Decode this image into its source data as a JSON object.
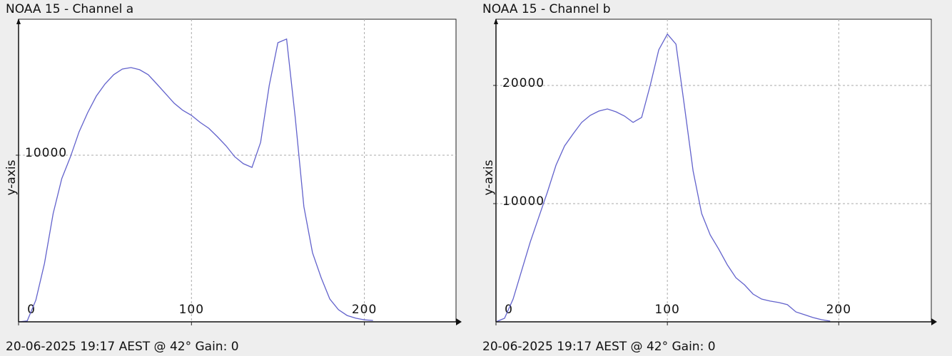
{
  "chart_data": [
    {
      "type": "line",
      "title": "NOAA 15 - Channel a",
      "ylabel": "y-axis",
      "footer": "20-06-2025 19:17 AEST @ 42° Gain: 0",
      "x": [
        0,
        5,
        10,
        15,
        20,
        25,
        30,
        35,
        40,
        45,
        50,
        55,
        60,
        65,
        70,
        75,
        80,
        85,
        90,
        95,
        100,
        105,
        110,
        115,
        120,
        125,
        130,
        135,
        140,
        145,
        150,
        155,
        160,
        165,
        170,
        175,
        180,
        185,
        190,
        195,
        200,
        205
      ],
      "series": [
        {
          "name": "Channel a",
          "color": "#6262cc",
          "values": [
            0,
            50,
            1300,
            3500,
            6500,
            8600,
            9900,
            11400,
            12560,
            13550,
            14270,
            14830,
            15170,
            15260,
            15130,
            14830,
            14270,
            13700,
            13120,
            12690,
            12390,
            11970,
            11620,
            11110,
            10560,
            9910,
            9490,
            9270,
            10770,
            14190,
            16750,
            16970,
            12260,
            6920,
            4150,
            2650,
            1370,
            730,
            380,
            220,
            120,
            80
          ]
        }
      ],
      "xlim": [
        0,
        253
      ],
      "ylim": [
        0,
        18160
      ],
      "xticks": [
        0,
        100,
        200
      ],
      "yticks": [
        10000
      ],
      "grid": true
    },
    {
      "type": "line",
      "title": "NOAA 15 - Channel b",
      "ylabel": "y-axis",
      "footer": "20-06-2025 19:17 AEST @ 42° Gain: 0",
      "x": [
        0,
        5,
        10,
        15,
        20,
        25,
        30,
        35,
        40,
        45,
        50,
        55,
        60,
        65,
        70,
        75,
        80,
        85,
        90,
        95,
        100,
        105,
        110,
        115,
        120,
        125,
        130,
        135,
        140,
        145,
        150,
        155,
        160,
        165,
        170,
        175,
        180,
        185,
        190,
        195
      ],
      "series": [
        {
          "name": "Channel b",
          "color": "#6262cc",
          "values": [
            0,
            300,
            1930,
            4340,
            6750,
            8860,
            10960,
            13250,
            14880,
            15900,
            16870,
            17470,
            17830,
            18010,
            17770,
            17410,
            16870,
            17290,
            20000,
            23010,
            24340,
            23490,
            18190,
            12770,
            9160,
            7350,
            6140,
            4820,
            3730,
            3130,
            2350,
            1930,
            1750,
            1630,
            1450,
            840,
            600,
            360,
            180,
            60
          ]
        }
      ],
      "xlim": [
        0,
        254
      ],
      "ylim": [
        0,
        25600
      ],
      "xticks": [
        0,
        100,
        200
      ],
      "yticks": [
        10000,
        20000
      ],
      "grid": true
    }
  ]
}
